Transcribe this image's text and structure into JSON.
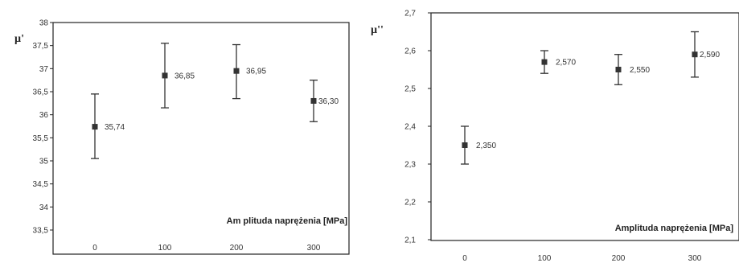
{
  "chart_data": [
    {
      "type": "scatter",
      "ylabel": "µ'",
      "xlabel": "Am plituda naprężenia [MPa]",
      "x": [
        0,
        100,
        200,
        300
      ],
      "x_tick_labels": [
        "0",
        "100",
        "200",
        "300"
      ],
      "ylim": [
        33.5,
        38
      ],
      "y_tick_labels": [
        "33,5",
        "34",
        "34,5",
        "35",
        "35,5",
        "36",
        "36,5",
        "37",
        "37,5",
        "38"
      ],
      "y_ticks": [
        33.5,
        34,
        34.5,
        35,
        35.5,
        36,
        36.5,
        37,
        37.5,
        38
      ],
      "series": [
        {
          "values": [
            35.74,
            36.85,
            36.95,
            36.3
          ],
          "error_low": [
            35.05,
            36.15,
            36.35,
            35.85
          ],
          "error_high": [
            36.45,
            37.55,
            37.52,
            36.75
          ],
          "data_labels": [
            "35,74",
            "36,85",
            "36,95",
            "36,30"
          ]
        }
      ],
      "grid": false
    },
    {
      "type": "scatter",
      "ylabel": "µ''",
      "xlabel": "Amplituda naprężenia [MPa]",
      "x": [
        0,
        100,
        200,
        300
      ],
      "x_tick_labels": [
        "0",
        "100",
        "200",
        "300"
      ],
      "ylim": [
        2.1,
        2.7
      ],
      "y_tick_labels": [
        "2,1",
        "2,2",
        "2,3",
        "2,4",
        "2,5",
        "2,6",
        "2,7"
      ],
      "y_ticks": [
        2.1,
        2.2,
        2.3,
        2.4,
        2.5,
        2.6,
        2.7
      ],
      "series": [
        {
          "values": [
            2.35,
            2.57,
            2.55,
            2.59
          ],
          "error_low": [
            2.3,
            2.54,
            2.51,
            2.53
          ],
          "error_high": [
            2.4,
            2.6,
            2.59,
            2.65
          ],
          "data_labels": [
            "2,350",
            "2,570",
            "2,550",
            "2,590"
          ]
        }
      ],
      "grid": false
    }
  ]
}
